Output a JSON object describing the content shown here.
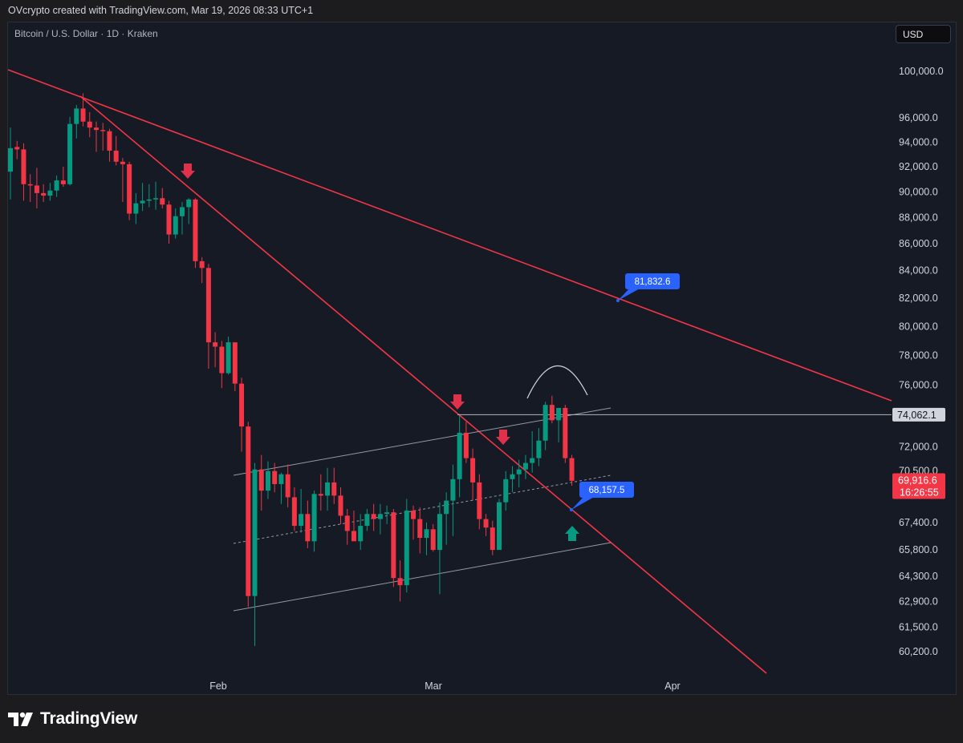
{
  "header": {
    "credit": "OVcrypto created with TradingView.com, Mar 19, 2026 08:33 UTC+1",
    "symbol": "Bitcoin / U.S. Dollar · 1D · Kraken",
    "currency": "USD"
  },
  "footer": {
    "brand": "TradingView"
  },
  "colors": {
    "up": "#089981",
    "down": "#f23645",
    "trendline": "#f23645",
    "label_blue": "#2962ff",
    "background": "#161a25"
  },
  "chart_data": {
    "type": "candlestick",
    "symbol": "Bitcoin / U.S. Dollar",
    "interval": "1D",
    "exchange": "Kraken",
    "y_axis": {
      "scale": "log",
      "ticks": [
        "100,000.0",
        "96,000.0",
        "94,000.0",
        "92,000.0",
        "90,000.0",
        "88,000.0",
        "86,000.0",
        "84,000.0",
        "82,000.0",
        "80,000.0",
        "78,000.0",
        "76,000.0",
        "72,000.0",
        "70,500.0",
        "67,400.0",
        "65,800.0",
        "64,300.0",
        "62,900.0",
        "61,500.0",
        "60,200.0"
      ]
    },
    "x_axis": {
      "ticks": [
        "Feb",
        "Mar",
        "Apr"
      ]
    },
    "candles": [
      {
        "o": 91600,
        "h": 95200,
        "l": 89400,
        "c": 93500
      },
      {
        "o": 93600,
        "h": 94100,
        "l": 92600,
        "c": 93400
      },
      {
        "o": 93400,
        "h": 93900,
        "l": 89300,
        "c": 90600
      },
      {
        "o": 90600,
        "h": 91400,
        "l": 89200,
        "c": 90500
      },
      {
        "o": 90500,
        "h": 91900,
        "l": 88700,
        "c": 89900
      },
      {
        "o": 89900,
        "h": 90600,
        "l": 89200,
        "c": 89700
      },
      {
        "o": 89700,
        "h": 90700,
        "l": 89300,
        "c": 90100
      },
      {
        "o": 90100,
        "h": 91300,
        "l": 89600,
        "c": 90900
      },
      {
        "o": 90900,
        "h": 92000,
        "l": 90400,
        "c": 90600
      },
      {
        "o": 90600,
        "h": 96100,
        "l": 90500,
        "c": 95500
      },
      {
        "o": 95500,
        "h": 97100,
        "l": 94300,
        "c": 96800
      },
      {
        "o": 96800,
        "h": 98100,
        "l": 95300,
        "c": 95700
      },
      {
        "o": 95700,
        "h": 96500,
        "l": 94400,
        "c": 95200
      },
      {
        "o": 95200,
        "h": 95700,
        "l": 93200,
        "c": 95000
      },
      {
        "o": 95000,
        "h": 95600,
        "l": 93300,
        "c": 94900
      },
      {
        "o": 94900,
        "h": 95100,
        "l": 92400,
        "c": 93300
      },
      {
        "o": 93300,
        "h": 94500,
        "l": 92100,
        "c": 92400
      },
      {
        "o": 92400,
        "h": 92700,
        "l": 89200,
        "c": 92200
      },
      {
        "o": 92200,
        "h": 92400,
        "l": 87800,
        "c": 88300
      },
      {
        "o": 88300,
        "h": 89900,
        "l": 87500,
        "c": 89100
      },
      {
        "o": 89100,
        "h": 90700,
        "l": 88500,
        "c": 89300
      },
      {
        "o": 89300,
        "h": 90600,
        "l": 88800,
        "c": 89400
      },
      {
        "o": 89400,
        "h": 90800,
        "l": 88600,
        "c": 89500
      },
      {
        "o": 89500,
        "h": 90300,
        "l": 88700,
        "c": 89000
      },
      {
        "o": 89000,
        "h": 89300,
        "l": 86000,
        "c": 86700
      },
      {
        "o": 86700,
        "h": 88700,
        "l": 86400,
        "c": 88100
      },
      {
        "o": 88100,
        "h": 89200,
        "l": 86700,
        "c": 88800
      },
      {
        "o": 88800,
        "h": 89500,
        "l": 87500,
        "c": 89400
      },
      {
        "o": 89400,
        "h": 89500,
        "l": 84200,
        "c": 84700
      },
      {
        "o": 84700,
        "h": 85000,
        "l": 83100,
        "c": 84200
      },
      {
        "o": 84200,
        "h": 84500,
        "l": 77100,
        "c": 78900
      },
      {
        "o": 78900,
        "h": 79600,
        "l": 77200,
        "c": 78600
      },
      {
        "o": 78600,
        "h": 79000,
        "l": 75800,
        "c": 76800
      },
      {
        "o": 76800,
        "h": 79300,
        "l": 76700,
        "c": 78900
      },
      {
        "o": 78900,
        "h": 78900,
        "l": 75600,
        "c": 76100
      },
      {
        "o": 76100,
        "h": 76500,
        "l": 71700,
        "c": 73300
      },
      {
        "o": 73300,
        "h": 73600,
        "l": 62600,
        "c": 63200
      },
      {
        "o": 63200,
        "h": 71000,
        "l": 60500,
        "c": 70600
      },
      {
        "o": 70600,
        "h": 71500,
        "l": 68100,
        "c": 69300
      },
      {
        "o": 69300,
        "h": 71100,
        "l": 68800,
        "c": 70500
      },
      {
        "o": 70500,
        "h": 71000,
        "l": 69200,
        "c": 69700
      },
      {
        "o": 69700,
        "h": 70400,
        "l": 68500,
        "c": 70300
      },
      {
        "o": 70300,
        "h": 70900,
        "l": 68300,
        "c": 68900
      },
      {
        "o": 68900,
        "h": 69500,
        "l": 66900,
        "c": 67200
      },
      {
        "o": 67200,
        "h": 69400,
        "l": 66800,
        "c": 67900
      },
      {
        "o": 67900,
        "h": 68700,
        "l": 65900,
        "c": 66300
      },
      {
        "o": 66300,
        "h": 69300,
        "l": 65700,
        "c": 69100
      },
      {
        "o": 69100,
        "h": 70300,
        "l": 68100,
        "c": 69000
      },
      {
        "o": 69000,
        "h": 70700,
        "l": 68100,
        "c": 69800
      },
      {
        "o": 69800,
        "h": 70700,
        "l": 68500,
        "c": 69000
      },
      {
        "o": 69000,
        "h": 69500,
        "l": 67300,
        "c": 67800
      },
      {
        "o": 67800,
        "h": 68200,
        "l": 66100,
        "c": 66900
      },
      {
        "o": 66900,
        "h": 68100,
        "l": 66500,
        "c": 66300
      },
      {
        "o": 66300,
        "h": 67900,
        "l": 65800,
        "c": 67200
      },
      {
        "o": 67200,
        "h": 68200,
        "l": 66900,
        "c": 67900
      },
      {
        "o": 67900,
        "h": 68500,
        "l": 66900,
        "c": 67600
      },
      {
        "o": 67600,
        "h": 68500,
        "l": 66700,
        "c": 67900
      },
      {
        "o": 67900,
        "h": 68400,
        "l": 67300,
        "c": 68000
      },
      {
        "o": 68000,
        "h": 68200,
        "l": 63700,
        "c": 64200
      },
      {
        "o": 64200,
        "h": 65200,
        "l": 62900,
        "c": 63800
      },
      {
        "o": 63800,
        "h": 68800,
        "l": 63400,
        "c": 68100
      },
      {
        "o": 68100,
        "h": 68400,
        "l": 66400,
        "c": 67600
      },
      {
        "o": 67600,
        "h": 68300,
        "l": 65600,
        "c": 66500
      },
      {
        "o": 66500,
        "h": 67400,
        "l": 65500,
        "c": 67000
      },
      {
        "o": 67000,
        "h": 67300,
        "l": 65700,
        "c": 65800
      },
      {
        "o": 65800,
        "h": 68600,
        "l": 63300,
        "c": 67900
      },
      {
        "o": 67900,
        "h": 69200,
        "l": 66100,
        "c": 68700
      },
      {
        "o": 68700,
        "h": 70900,
        "l": 66600,
        "c": 70000
      },
      {
        "o": 70000,
        "h": 74000,
        "l": 68900,
        "c": 72900
      },
      {
        "o": 72900,
        "h": 73600,
        "l": 71000,
        "c": 71300
      },
      {
        "o": 71300,
        "h": 71900,
        "l": 68700,
        "c": 69800
      },
      {
        "o": 69800,
        "h": 70300,
        "l": 67000,
        "c": 67600
      },
      {
        "o": 67600,
        "h": 67900,
        "l": 66600,
        "c": 67100
      },
      {
        "o": 67100,
        "h": 67500,
        "l": 65500,
        "c": 65800
      },
      {
        "o": 65800,
        "h": 68800,
        "l": 65900,
        "c": 68600
      },
      {
        "o": 68600,
        "h": 70500,
        "l": 68100,
        "c": 70000
      },
      {
        "o": 70000,
        "h": 70800,
        "l": 69200,
        "c": 70300
      },
      {
        "o": 70300,
        "h": 71200,
        "l": 69500,
        "c": 70600
      },
      {
        "o": 70600,
        "h": 71500,
        "l": 70000,
        "c": 71000
      },
      {
        "o": 71000,
        "h": 73000,
        "l": 70400,
        "c": 71300
      },
      {
        "o": 71300,
        "h": 73200,
        "l": 70800,
        "c": 72400
      },
      {
        "o": 72400,
        "h": 74900,
        "l": 71800,
        "c": 74700
      },
      {
        "o": 74700,
        "h": 75300,
        "l": 73500,
        "c": 73700
      },
      {
        "o": 73700,
        "h": 74500,
        "l": 72300,
        "c": 74500
      },
      {
        "o": 74500,
        "h": 74700,
        "l": 71000,
        "c": 71300
      },
      {
        "o": 71300,
        "h": 71500,
        "l": 69600,
        "c": 69900
      }
    ],
    "price_labels": [
      {
        "value": "74,062.1",
        "role": "horizontal-line"
      },
      {
        "value": "69,916.6",
        "role": "last-price"
      },
      {
        "value": "16:26:55",
        "role": "countdown"
      }
    ],
    "annotations": [
      {
        "type": "callout",
        "text": "81,832.6"
      },
      {
        "type": "callout",
        "text": "68,157.5"
      },
      {
        "type": "arrow",
        "direction": "down",
        "color": "red",
        "count": 3
      },
      {
        "type": "arrow",
        "direction": "up",
        "color": "green",
        "count": 1
      },
      {
        "type": "arc",
        "shape": "rounded-top"
      }
    ]
  }
}
